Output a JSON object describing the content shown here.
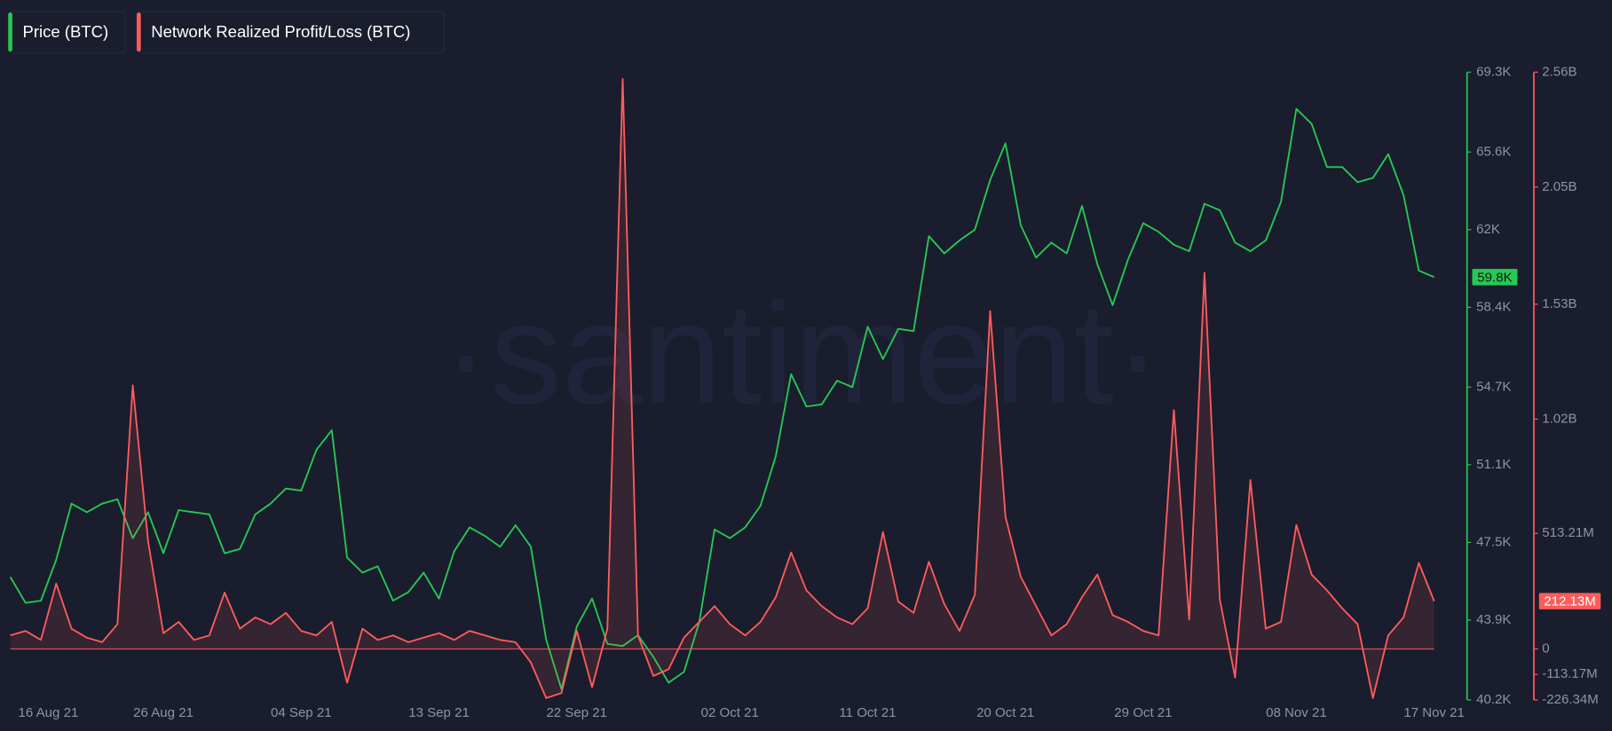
{
  "chart_data": {
    "type": "line",
    "watermark": "·santiment·",
    "x": [
      "16 Aug 21",
      "17 Aug 21",
      "18 Aug 21",
      "19 Aug 21",
      "20 Aug 21",
      "21 Aug 21",
      "22 Aug 21",
      "23 Aug 21",
      "24 Aug 21",
      "25 Aug 21",
      "26 Aug 21",
      "27 Aug 21",
      "28 Aug 21",
      "29 Aug 21",
      "30 Aug 21",
      "31 Aug 21",
      "01 Sep 21",
      "02 Sep 21",
      "03 Sep 21",
      "04 Sep 21",
      "05 Sep 21",
      "06 Sep 21",
      "07 Sep 21",
      "08 Sep 21",
      "09 Sep 21",
      "10 Sep 21",
      "11 Sep 21",
      "12 Sep 21",
      "13 Sep 21",
      "14 Sep 21",
      "15 Sep 21",
      "16 Sep 21",
      "17 Sep 21",
      "18 Sep 21",
      "19 Sep 21",
      "20 Sep 21",
      "21 Sep 21",
      "22 Sep 21",
      "23 Sep 21",
      "24 Sep 21",
      "25 Sep 21",
      "26 Sep 21",
      "27 Sep 21",
      "28 Sep 21",
      "29 Sep 21",
      "30 Sep 21",
      "01 Oct 21",
      "02 Oct 21",
      "03 Oct 21",
      "04 Oct 21",
      "05 Oct 21",
      "06 Oct 21",
      "07 Oct 21",
      "08 Oct 21",
      "09 Oct 21",
      "10 Oct 21",
      "11 Oct 21",
      "12 Oct 21",
      "13 Oct 21",
      "14 Oct 21",
      "15 Oct 21",
      "16 Oct 21",
      "17 Oct 21",
      "18 Oct 21",
      "19 Oct 21",
      "20 Oct 21",
      "21 Oct 21",
      "22 Oct 21",
      "23 Oct 21",
      "24 Oct 21",
      "25 Oct 21",
      "26 Oct 21",
      "27 Oct 21",
      "28 Oct 21",
      "29 Oct 21",
      "30 Oct 21",
      "31 Oct 21",
      "01 Nov 21",
      "02 Nov 21",
      "03 Nov 21",
      "04 Nov 21",
      "05 Nov 21",
      "06 Nov 21",
      "07 Nov 21",
      "08 Nov 21",
      "09 Nov 21",
      "10 Nov 21",
      "11 Nov 21",
      "12 Nov 21",
      "13 Nov 21",
      "14 Nov 21",
      "15 Nov 21",
      "16 Nov 21",
      "17 Nov 21"
    ],
    "xticks": [
      "16 Aug 21",
      "26 Aug 21",
      "04 Sep 21",
      "13 Sep 21",
      "22 Sep 21",
      "02 Oct 21",
      "11 Oct 21",
      "20 Oct 21",
      "29 Oct 21",
      "08 Nov 21",
      "17 Nov 21"
    ],
    "ylim": [
      40200,
      69300
    ],
    "yticks": [
      {
        "value": 69300,
        "label": "69.3K"
      },
      {
        "value": 65600,
        "label": "65.6K"
      },
      {
        "value": 62000,
        "label": "62K"
      },
      {
        "value": 58400,
        "label": "58.4K"
      },
      {
        "value": 54700,
        "label": "54.7K"
      },
      {
        "value": 51100,
        "label": "51.1K"
      },
      {
        "value": 47500,
        "label": "47.5K"
      },
      {
        "value": 43900,
        "label": "43.9K"
      },
      {
        "value": 40200,
        "label": "40.2K"
      }
    ],
    "y2lim": [
      -226340000,
      2560000000
    ],
    "y2ticks": [
      {
        "value": 2560000000,
        "label": "2.56B"
      },
      {
        "value": 2050000000,
        "label": "2.05B"
      },
      {
        "value": 1530000000,
        "label": "1.53B"
      },
      {
        "value": 1020000000,
        "label": "1.02B"
      },
      {
        "value": 513210000,
        "label": "513.21M"
      },
      0,
      {
        "value": -113170000,
        "label": "-113.17M"
      },
      {
        "value": -226340000,
        "label": "-226.34M"
      }
    ],
    "series": [
      {
        "name": "Price (BTC)",
        "color": "#26c953",
        "last_label": "59.8K",
        "values": [
          45900,
          44700,
          44800,
          46700,
          49300,
          48900,
          49300,
          49500,
          47700,
          48900,
          47000,
          49000,
          48900,
          48800,
          47000,
          47200,
          48800,
          49300,
          50000,
          49900,
          51800,
          52700,
          46800,
          46100,
          46400,
          44800,
          45200,
          46100,
          44900,
          47100,
          48200,
          47800,
          47300,
          48300,
          47300,
          43000,
          40700,
          43600,
          44900,
          42800,
          42700,
          43200,
          42200,
          41000,
          41500,
          43800,
          48100,
          47700,
          48200,
          49200,
          51500,
          55300,
          53800,
          53900,
          55000,
          54700,
          57500,
          56000,
          57400,
          57300,
          61700,
          60900,
          61500,
          62000,
          64300,
          66000,
          62200,
          60700,
          61400,
          60900,
          63100,
          60400,
          58500,
          60600,
          62300,
          61900,
          61300,
          61000,
          63200,
          62900,
          61400,
          61000,
          61500,
          63300,
          67600,
          66900,
          64900,
          64900,
          64200,
          64400,
          65500,
          63600,
          60100,
          59800
        ]
      },
      {
        "name": "Network Realized Profit/Loss (BTC)",
        "color": "#ff5b5b",
        "axis": "y2",
        "last_label": "212.13M",
        "values": [
          60000000,
          80000000,
          40000000,
          290000000,
          90000000,
          50000000,
          30000000,
          110000000,
          1170000000,
          478000000,
          70000000,
          120000000,
          40000000,
          60000000,
          250000000,
          90000000,
          140000000,
          110000000,
          160000000,
          80000000,
          60000000,
          120000000,
          -150000000,
          90000000,
          40000000,
          60000000,
          30000000,
          50000000,
          70000000,
          40000000,
          80000000,
          60000000,
          40000000,
          30000000,
          -60000000,
          -218000000,
          -196000000,
          80000000,
          -170000000,
          90000000,
          2530000000,
          60000000,
          -120000000,
          -90000000,
          50000000,
          120000000,
          190000000,
          110000000,
          60000000,
          120000000,
          230000000,
          428000000,
          260000000,
          190000000,
          140000000,
          110000000,
          180000000,
          519000000,
          210000000,
          160000000,
          387000000,
          200000000,
          80000000,
          240000000,
          1500000000,
          587000000,
          320000000,
          190000000,
          60000000,
          110000000,
          230000000,
          330000000,
          150000000,
          120000000,
          80000000,
          60000000,
          1060000000,
          130000000,
          1670000000,
          220000000,
          -127000000,
          750000000,
          90000000,
          120000000,
          550000000,
          330000000,
          260000000,
          180000000,
          110000000,
          -218000000,
          60000000,
          140000000,
          382000000,
          212130000
        ]
      }
    ]
  }
}
